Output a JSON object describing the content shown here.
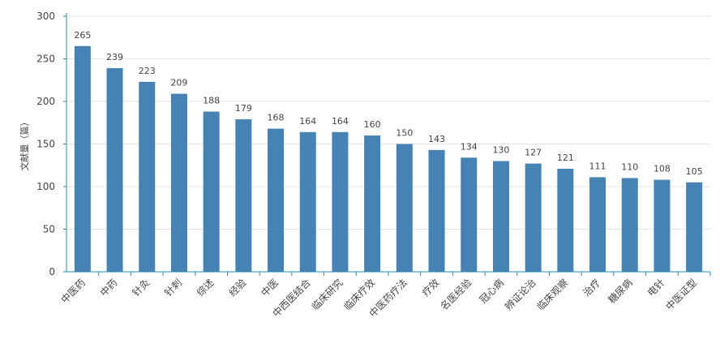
{
  "chart_data": {
    "type": "bar",
    "title": "",
    "xlabel": "",
    "ylabel": "文献量（篇）",
    "ylim": [
      0,
      300
    ],
    "yticks": [
      0,
      50,
      100,
      150,
      200,
      250,
      300
    ],
    "grid": true,
    "legend": "none",
    "bar_color": "#4682b4",
    "categories": [
      "中医药",
      "中药",
      "针灸",
      "针刺",
      "综述",
      "经验",
      "中医",
      "中西医结合",
      "临床研究",
      "临床疗效",
      "中医药疗法",
      "疗效",
      "名医经验",
      "冠心病",
      "辨证论治",
      "临床观察",
      "治疗",
      "糖尿病",
      "电针",
      "中医证型"
    ],
    "values": [
      265,
      239,
      223,
      209,
      188,
      179,
      168,
      164,
      164,
      160,
      150,
      143,
      134,
      130,
      127,
      121,
      111,
      110,
      108,
      105
    ]
  }
}
